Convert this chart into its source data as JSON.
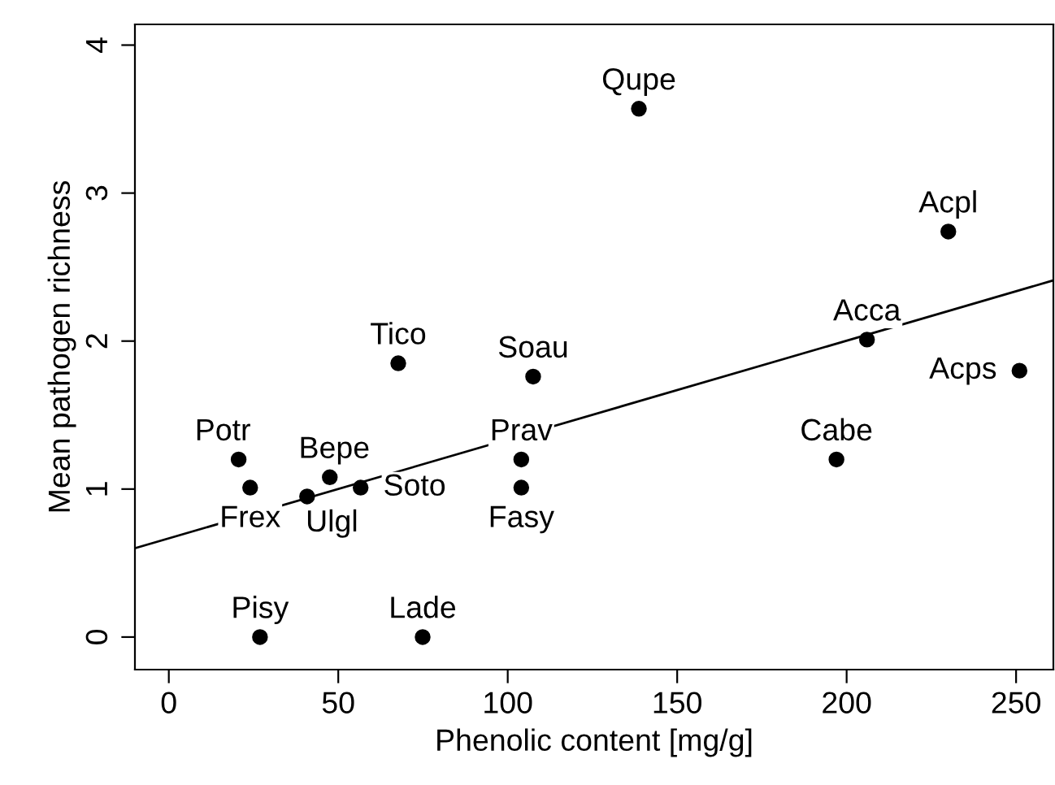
{
  "chart_data": {
    "type": "scatter",
    "xlabel": "Phenolic content [mg/g]",
    "ylabel": "Mean pathogen richness",
    "xlim": [
      -10,
      261
    ],
    "ylim": [
      -0.22,
      4.14
    ],
    "xticks": [
      0,
      50,
      100,
      150,
      200,
      250
    ],
    "yticks": [
      0,
      1,
      2,
      3,
      4
    ],
    "grid": false,
    "legend": false,
    "series": [
      {
        "marker": "circle",
        "color": "#000000",
        "x": [
          138.7,
          230,
          206,
          251,
          197,
          67.7,
          107.5,
          104,
          104,
          20.6,
          24,
          47.5,
          56.6,
          40.8,
          26.9,
          74.9
        ],
        "values": [
          3.57,
          2.74,
          2.01,
          1.8,
          1.2,
          1.85,
          1.76,
          1.2,
          1.01,
          1.2,
          1.01,
          1.08,
          1.01,
          0.95,
          0,
          0
        ]
      },
      {
        "type": "line",
        "color": "#000000",
        "x": [
          -10,
          261
        ],
        "values": [
          0.6,
          2.41
        ]
      }
    ],
    "annotations": [
      {
        "text": "Qupe",
        "x": 138.7,
        "y": 3.57
      },
      {
        "text": "Acpl",
        "x": 230,
        "y": 2.74
      },
      {
        "text": "Acca",
        "x": 206,
        "y": 2.01
      },
      {
        "text": "Acps",
        "x": 251,
        "y": 1.8
      },
      {
        "text": "Cabe",
        "x": 197,
        "y": 1.2
      },
      {
        "text": "Tico",
        "x": 67.7,
        "y": 1.85
      },
      {
        "text": "Soau",
        "x": 107.5,
        "y": 1.76
      },
      {
        "text": "Prav",
        "x": 104,
        "y": 1.2
      },
      {
        "text": "Fasy",
        "x": 104,
        "y": 1.01
      },
      {
        "text": "Potr",
        "x": 20.6,
        "y": 1.2
      },
      {
        "text": "Frex",
        "x": 24,
        "y": 1.01
      },
      {
        "text": "Bepe",
        "x": 47.5,
        "y": 1.08
      },
      {
        "text": "Soto",
        "x": 56.6,
        "y": 1.01
      },
      {
        "text": "Ulgl",
        "x": 40.8,
        "y": 0.95
      },
      {
        "text": "Pisy",
        "x": 26.9,
        "y": 0
      },
      {
        "text": "Lade",
        "x": 74.9,
        "y": 0
      }
    ]
  }
}
